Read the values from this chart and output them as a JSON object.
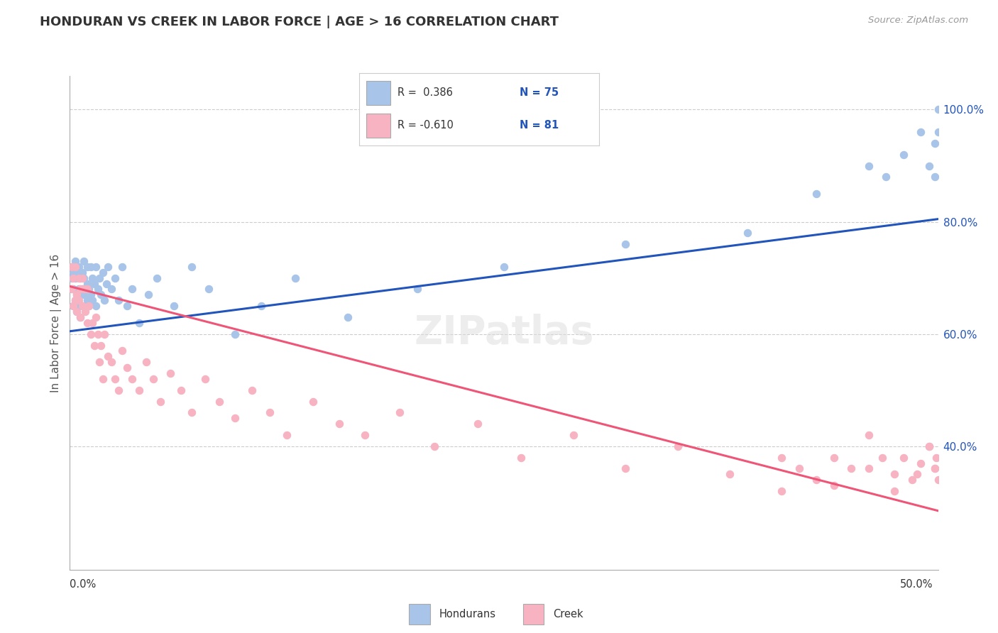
{
  "title": "HONDURAN VS CREEK IN LABOR FORCE | AGE > 16 CORRELATION CHART",
  "source": "Source: ZipAtlas.com",
  "ylabel": "In Labor Force | Age > 16",
  "x_min": 0.0,
  "x_max": 0.5,
  "y_min": 0.18,
  "y_max": 1.06,
  "honduran_color": "#a8c4e8",
  "creek_color": "#f7b3c2",
  "honduran_line_color": "#2255bb",
  "creek_line_color": "#ee5577",
  "right_yticks": [
    0.4,
    0.6,
    0.8,
    1.0
  ],
  "right_yticklabels": [
    "40.0%",
    "60.0%",
    "80.0%",
    "100.0%"
  ],
  "grid_color": "#cccccc",
  "background_color": "#ffffff",
  "honduran_line_x0": 0.0,
  "honduran_line_y0": 0.605,
  "honduran_line_x1": 0.5,
  "honduran_line_y1": 0.805,
  "creek_line_x0": 0.0,
  "creek_line_y0": 0.685,
  "creek_line_x1": 0.5,
  "creek_line_y1": 0.285,
  "honduran_x": [
    0.001,
    0.001,
    0.001,
    0.002,
    0.002,
    0.002,
    0.003,
    0.003,
    0.003,
    0.004,
    0.004,
    0.004,
    0.005,
    0.005,
    0.005,
    0.006,
    0.006,
    0.006,
    0.007,
    0.007,
    0.007,
    0.008,
    0.008,
    0.008,
    0.009,
    0.009,
    0.01,
    0.01,
    0.01,
    0.011,
    0.011,
    0.012,
    0.012,
    0.013,
    0.013,
    0.014,
    0.015,
    0.015,
    0.016,
    0.017,
    0.018,
    0.019,
    0.02,
    0.021,
    0.022,
    0.024,
    0.026,
    0.028,
    0.03,
    0.033,
    0.036,
    0.04,
    0.045,
    0.05,
    0.06,
    0.07,
    0.08,
    0.095,
    0.11,
    0.13,
    0.16,
    0.2,
    0.25,
    0.32,
    0.39,
    0.43,
    0.46,
    0.47,
    0.48,
    0.49,
    0.495,
    0.498,
    0.5,
    0.5,
    0.498
  ],
  "honduran_y": [
    0.7,
    0.68,
    0.72,
    0.65,
    0.68,
    0.71,
    0.66,
    0.7,
    0.73,
    0.64,
    0.67,
    0.71,
    0.68,
    0.65,
    0.72,
    0.67,
    0.7,
    0.63,
    0.68,
    0.71,
    0.65,
    0.7,
    0.67,
    0.73,
    0.65,
    0.68,
    0.72,
    0.66,
    0.69,
    0.65,
    0.68,
    0.72,
    0.67,
    0.7,
    0.66,
    0.69,
    0.72,
    0.65,
    0.68,
    0.7,
    0.67,
    0.71,
    0.66,
    0.69,
    0.72,
    0.68,
    0.7,
    0.66,
    0.72,
    0.65,
    0.68,
    0.62,
    0.67,
    0.7,
    0.65,
    0.72,
    0.68,
    0.6,
    0.65,
    0.7,
    0.63,
    0.68,
    0.72,
    0.76,
    0.78,
    0.85,
    0.9,
    0.88,
    0.92,
    0.96,
    0.9,
    0.94,
    1.0,
    0.96,
    0.88
  ],
  "creek_x": [
    0.001,
    0.001,
    0.002,
    0.002,
    0.003,
    0.003,
    0.004,
    0.004,
    0.005,
    0.005,
    0.006,
    0.006,
    0.007,
    0.007,
    0.008,
    0.009,
    0.01,
    0.01,
    0.011,
    0.012,
    0.013,
    0.014,
    0.015,
    0.016,
    0.017,
    0.018,
    0.019,
    0.02,
    0.022,
    0.024,
    0.026,
    0.028,
    0.03,
    0.033,
    0.036,
    0.04,
    0.044,
    0.048,
    0.052,
    0.058,
    0.064,
    0.07,
    0.078,
    0.086,
    0.095,
    0.105,
    0.115,
    0.125,
    0.14,
    0.155,
    0.17,
    0.19,
    0.21,
    0.235,
    0.26,
    0.29,
    0.32,
    0.35,
    0.38,
    0.41,
    0.44,
    0.46,
    0.475,
    0.488,
    0.495,
    0.498,
    0.499,
    0.5,
    0.498,
    0.495,
    0.49,
    0.485,
    0.48,
    0.475,
    0.468,
    0.46,
    0.45,
    0.44,
    0.43,
    0.42,
    0.41
  ],
  "creek_y": [
    0.72,
    0.68,
    0.65,
    0.7,
    0.66,
    0.72,
    0.67,
    0.64,
    0.7,
    0.66,
    0.68,
    0.63,
    0.7,
    0.65,
    0.68,
    0.64,
    0.68,
    0.62,
    0.65,
    0.6,
    0.62,
    0.58,
    0.63,
    0.6,
    0.55,
    0.58,
    0.52,
    0.6,
    0.56,
    0.55,
    0.52,
    0.5,
    0.57,
    0.54,
    0.52,
    0.5,
    0.55,
    0.52,
    0.48,
    0.53,
    0.5,
    0.46,
    0.52,
    0.48,
    0.45,
    0.5,
    0.46,
    0.42,
    0.48,
    0.44,
    0.42,
    0.46,
    0.4,
    0.44,
    0.38,
    0.42,
    0.36,
    0.4,
    0.35,
    0.38,
    0.33,
    0.36,
    0.32,
    0.35,
    0.4,
    0.36,
    0.38,
    0.34,
    0.36,
    0.4,
    0.37,
    0.34,
    0.38,
    0.35,
    0.38,
    0.42,
    0.36,
    0.38,
    0.34,
    0.36,
    0.32
  ]
}
